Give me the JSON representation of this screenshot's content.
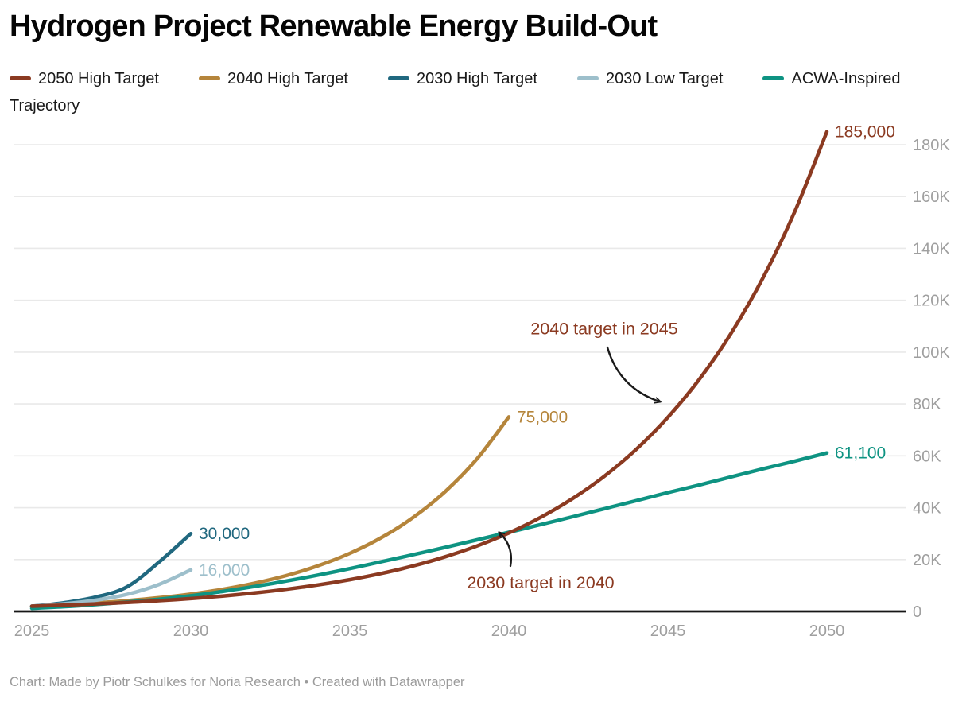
{
  "chart_data": {
    "type": "line",
    "title": "Hydrogen Project Renewable Energy Build-Out",
    "footer": "Chart: Made by Piotr Schulkes for Noria Research • Created with Datawrapper",
    "x_axis": {
      "ticks": [
        2025,
        2030,
        2035,
        2040,
        2045,
        2050
      ],
      "min": 2025,
      "max": 2050
    },
    "y_axis": {
      "side": "right",
      "min": 0,
      "max": 185000,
      "tick_values": [
        0,
        20000,
        40000,
        60000,
        80000,
        100000,
        120000,
        140000,
        160000,
        180000
      ],
      "tick_labels": [
        "0",
        "20K",
        "40K",
        "60K",
        "80K",
        "100K",
        "120K",
        "140K",
        "160K",
        "180K"
      ],
      "gridlines": true
    },
    "legend_position": "top",
    "series": [
      {
        "name": "2050 High Target",
        "color": "#8B3A21",
        "end_label": "185,000",
        "final_value": 185000,
        "years": [
          2025,
          2026,
          2027,
          2028,
          2029,
          2030,
          2031,
          2032,
          2033,
          2034,
          2035,
          2036,
          2037,
          2038,
          2039,
          2040,
          2041,
          2042,
          2043,
          2044,
          2045,
          2046,
          2047,
          2048,
          2049,
          2050
        ],
        "values": [
          2000,
          2400,
          2870,
          3440,
          4130,
          4950,
          5930,
          7110,
          8520,
          10210,
          12230,
          14660,
          17570,
          21060,
          25250,
          30260,
          36270,
          43470,
          52100,
          62440,
          74840,
          89700,
          107520,
          128860,
          154450,
          185000
        ]
      },
      {
        "name": "2040 High Target",
        "color": "#B5853B",
        "end_label": "75,000",
        "final_value": 75000,
        "years": [
          2025,
          2026,
          2027,
          2028,
          2029,
          2030,
          2031,
          2032,
          2033,
          2034,
          2035,
          2036,
          2037,
          2038,
          2039,
          2040
        ],
        "values": [
          2000,
          2550,
          3240,
          4130,
          5260,
          6690,
          8520,
          10850,
          13810,
          17590,
          22390,
          28510,
          36300,
          46220,
          58860,
          75000
        ]
      },
      {
        "name": "2030 High Target",
        "color": "#20687F",
        "end_label": "30,000",
        "final_value": 30000,
        "years": [
          2025,
          2026,
          2027,
          2028,
          2029,
          2030
        ],
        "values": [
          2000,
          3300,
          5500,
          9500,
          19000,
          30000
        ]
      },
      {
        "name": "2030 Low Target",
        "color": "#9DBFCB",
        "end_label": "16,000",
        "final_value": 16000,
        "years": [
          2025,
          2026,
          2027,
          2028,
          2029,
          2030
        ],
        "values": [
          2000,
          2900,
          4300,
          6600,
          10400,
          16000
        ]
      },
      {
        "name": "ACWA-Inspired Trajectory",
        "color": "#0E9382",
        "end_label": "61,100",
        "final_value": 61100,
        "years": [
          2025,
          2026,
          2027,
          2028,
          2029,
          2030,
          2031,
          2032,
          2033,
          2034,
          2035,
          2036,
          2037,
          2038,
          2039,
          2040,
          2041,
          2042,
          2043,
          2044,
          2045,
          2046,
          2047,
          2048,
          2049,
          2050
        ],
        "values": [
          1200,
          1800,
          2600,
          3600,
          4700,
          6000,
          7700,
          9600,
          11700,
          14000,
          16500,
          19200,
          21900,
          24700,
          27600,
          30500,
          33500,
          36500,
          39600,
          42700,
          45800,
          48800,
          51900,
          55000,
          58000,
          61100
        ]
      }
    ],
    "annotations": [
      {
        "text": "2040 target in 2045",
        "color": "#8B3A21",
        "text_year": 2043.0,
        "text_value": 109000,
        "arrow": {
          "from_year": 2043.1,
          "from_value": 101800,
          "to_year": 2044.75,
          "to_value": 80900,
          "bend": 25
        }
      },
      {
        "text": "2030 target in 2040",
        "color": "#8B3A21",
        "text_year": 2041.0,
        "text_value": 11000,
        "arrow": {
          "from_year": 2040.05,
          "from_value": 17500,
          "to_year": 2039.7,
          "to_value": 30400,
          "bend": 12
        }
      }
    ],
    "colors": {
      "axis_text": "#9F9F9F",
      "gridline": "#E9E9E9",
      "baseline": "#161616",
      "legend_text": "#1A1A1A",
      "title_text": "#050505",
      "footer_text": "#9B9B9B",
      "arrow": "#1A1A1A",
      "background": "#FFFFFF"
    }
  }
}
